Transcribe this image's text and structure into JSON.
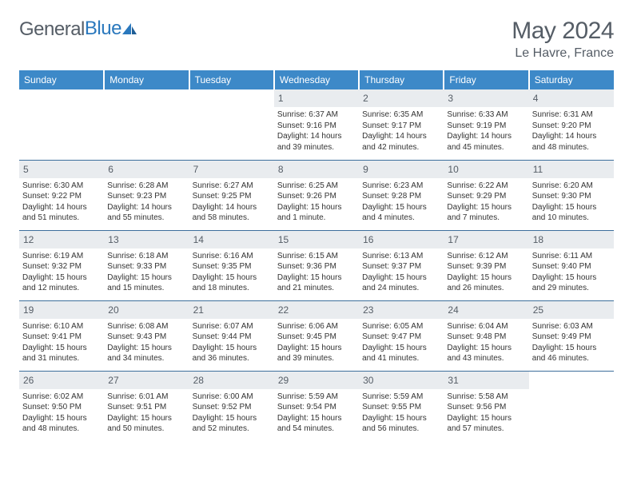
{
  "brand": {
    "part1": "General",
    "part2": "Blue"
  },
  "title": "May 2024",
  "location": "Le Havre, France",
  "colors": {
    "header_bg": "#3d89c8",
    "header_text": "#ffffff",
    "daynum_bg": "#e9ecef",
    "text_gray": "#555d66",
    "row_border": "#3d6f9c"
  },
  "typography": {
    "title_fontsize": 30,
    "location_fontsize": 16,
    "weekday_fontsize": 12,
    "daynum_fontsize": 12,
    "cell_fontsize": 10
  },
  "weekdays": [
    "Sunday",
    "Monday",
    "Tuesday",
    "Wednesday",
    "Thursday",
    "Friday",
    "Saturday"
  ],
  "weeks": [
    [
      {
        "day": "",
        "sunrise": "",
        "sunset": "",
        "daylight": ""
      },
      {
        "day": "",
        "sunrise": "",
        "sunset": "",
        "daylight": ""
      },
      {
        "day": "",
        "sunrise": "",
        "sunset": "",
        "daylight": ""
      },
      {
        "day": "1",
        "sunrise": "Sunrise: 6:37 AM",
        "sunset": "Sunset: 9:16 PM",
        "daylight": "Daylight: 14 hours and 39 minutes."
      },
      {
        "day": "2",
        "sunrise": "Sunrise: 6:35 AM",
        "sunset": "Sunset: 9:17 PM",
        "daylight": "Daylight: 14 hours and 42 minutes."
      },
      {
        "day": "3",
        "sunrise": "Sunrise: 6:33 AM",
        "sunset": "Sunset: 9:19 PM",
        "daylight": "Daylight: 14 hours and 45 minutes."
      },
      {
        "day": "4",
        "sunrise": "Sunrise: 6:31 AM",
        "sunset": "Sunset: 9:20 PM",
        "daylight": "Daylight: 14 hours and 48 minutes."
      }
    ],
    [
      {
        "day": "5",
        "sunrise": "Sunrise: 6:30 AM",
        "sunset": "Sunset: 9:22 PM",
        "daylight": "Daylight: 14 hours and 51 minutes."
      },
      {
        "day": "6",
        "sunrise": "Sunrise: 6:28 AM",
        "sunset": "Sunset: 9:23 PM",
        "daylight": "Daylight: 14 hours and 55 minutes."
      },
      {
        "day": "7",
        "sunrise": "Sunrise: 6:27 AM",
        "sunset": "Sunset: 9:25 PM",
        "daylight": "Daylight: 14 hours and 58 minutes."
      },
      {
        "day": "8",
        "sunrise": "Sunrise: 6:25 AM",
        "sunset": "Sunset: 9:26 PM",
        "daylight": "Daylight: 15 hours and 1 minute."
      },
      {
        "day": "9",
        "sunrise": "Sunrise: 6:23 AM",
        "sunset": "Sunset: 9:28 PM",
        "daylight": "Daylight: 15 hours and 4 minutes."
      },
      {
        "day": "10",
        "sunrise": "Sunrise: 6:22 AM",
        "sunset": "Sunset: 9:29 PM",
        "daylight": "Daylight: 15 hours and 7 minutes."
      },
      {
        "day": "11",
        "sunrise": "Sunrise: 6:20 AM",
        "sunset": "Sunset: 9:30 PM",
        "daylight": "Daylight: 15 hours and 10 minutes."
      }
    ],
    [
      {
        "day": "12",
        "sunrise": "Sunrise: 6:19 AM",
        "sunset": "Sunset: 9:32 PM",
        "daylight": "Daylight: 15 hours and 12 minutes."
      },
      {
        "day": "13",
        "sunrise": "Sunrise: 6:18 AM",
        "sunset": "Sunset: 9:33 PM",
        "daylight": "Daylight: 15 hours and 15 minutes."
      },
      {
        "day": "14",
        "sunrise": "Sunrise: 6:16 AM",
        "sunset": "Sunset: 9:35 PM",
        "daylight": "Daylight: 15 hours and 18 minutes."
      },
      {
        "day": "15",
        "sunrise": "Sunrise: 6:15 AM",
        "sunset": "Sunset: 9:36 PM",
        "daylight": "Daylight: 15 hours and 21 minutes."
      },
      {
        "day": "16",
        "sunrise": "Sunrise: 6:13 AM",
        "sunset": "Sunset: 9:37 PM",
        "daylight": "Daylight: 15 hours and 24 minutes."
      },
      {
        "day": "17",
        "sunrise": "Sunrise: 6:12 AM",
        "sunset": "Sunset: 9:39 PM",
        "daylight": "Daylight: 15 hours and 26 minutes."
      },
      {
        "day": "18",
        "sunrise": "Sunrise: 6:11 AM",
        "sunset": "Sunset: 9:40 PM",
        "daylight": "Daylight: 15 hours and 29 minutes."
      }
    ],
    [
      {
        "day": "19",
        "sunrise": "Sunrise: 6:10 AM",
        "sunset": "Sunset: 9:41 PM",
        "daylight": "Daylight: 15 hours and 31 minutes."
      },
      {
        "day": "20",
        "sunrise": "Sunrise: 6:08 AM",
        "sunset": "Sunset: 9:43 PM",
        "daylight": "Daylight: 15 hours and 34 minutes."
      },
      {
        "day": "21",
        "sunrise": "Sunrise: 6:07 AM",
        "sunset": "Sunset: 9:44 PM",
        "daylight": "Daylight: 15 hours and 36 minutes."
      },
      {
        "day": "22",
        "sunrise": "Sunrise: 6:06 AM",
        "sunset": "Sunset: 9:45 PM",
        "daylight": "Daylight: 15 hours and 39 minutes."
      },
      {
        "day": "23",
        "sunrise": "Sunrise: 6:05 AM",
        "sunset": "Sunset: 9:47 PM",
        "daylight": "Daylight: 15 hours and 41 minutes."
      },
      {
        "day": "24",
        "sunrise": "Sunrise: 6:04 AM",
        "sunset": "Sunset: 9:48 PM",
        "daylight": "Daylight: 15 hours and 43 minutes."
      },
      {
        "day": "25",
        "sunrise": "Sunrise: 6:03 AM",
        "sunset": "Sunset: 9:49 PM",
        "daylight": "Daylight: 15 hours and 46 minutes."
      }
    ],
    [
      {
        "day": "26",
        "sunrise": "Sunrise: 6:02 AM",
        "sunset": "Sunset: 9:50 PM",
        "daylight": "Daylight: 15 hours and 48 minutes."
      },
      {
        "day": "27",
        "sunrise": "Sunrise: 6:01 AM",
        "sunset": "Sunset: 9:51 PM",
        "daylight": "Daylight: 15 hours and 50 minutes."
      },
      {
        "day": "28",
        "sunrise": "Sunrise: 6:00 AM",
        "sunset": "Sunset: 9:52 PM",
        "daylight": "Daylight: 15 hours and 52 minutes."
      },
      {
        "day": "29",
        "sunrise": "Sunrise: 5:59 AM",
        "sunset": "Sunset: 9:54 PM",
        "daylight": "Daylight: 15 hours and 54 minutes."
      },
      {
        "day": "30",
        "sunrise": "Sunrise: 5:59 AM",
        "sunset": "Sunset: 9:55 PM",
        "daylight": "Daylight: 15 hours and 56 minutes."
      },
      {
        "day": "31",
        "sunrise": "Sunrise: 5:58 AM",
        "sunset": "Sunset: 9:56 PM",
        "daylight": "Daylight: 15 hours and 57 minutes."
      },
      {
        "day": "",
        "sunrise": "",
        "sunset": "",
        "daylight": ""
      }
    ]
  ]
}
